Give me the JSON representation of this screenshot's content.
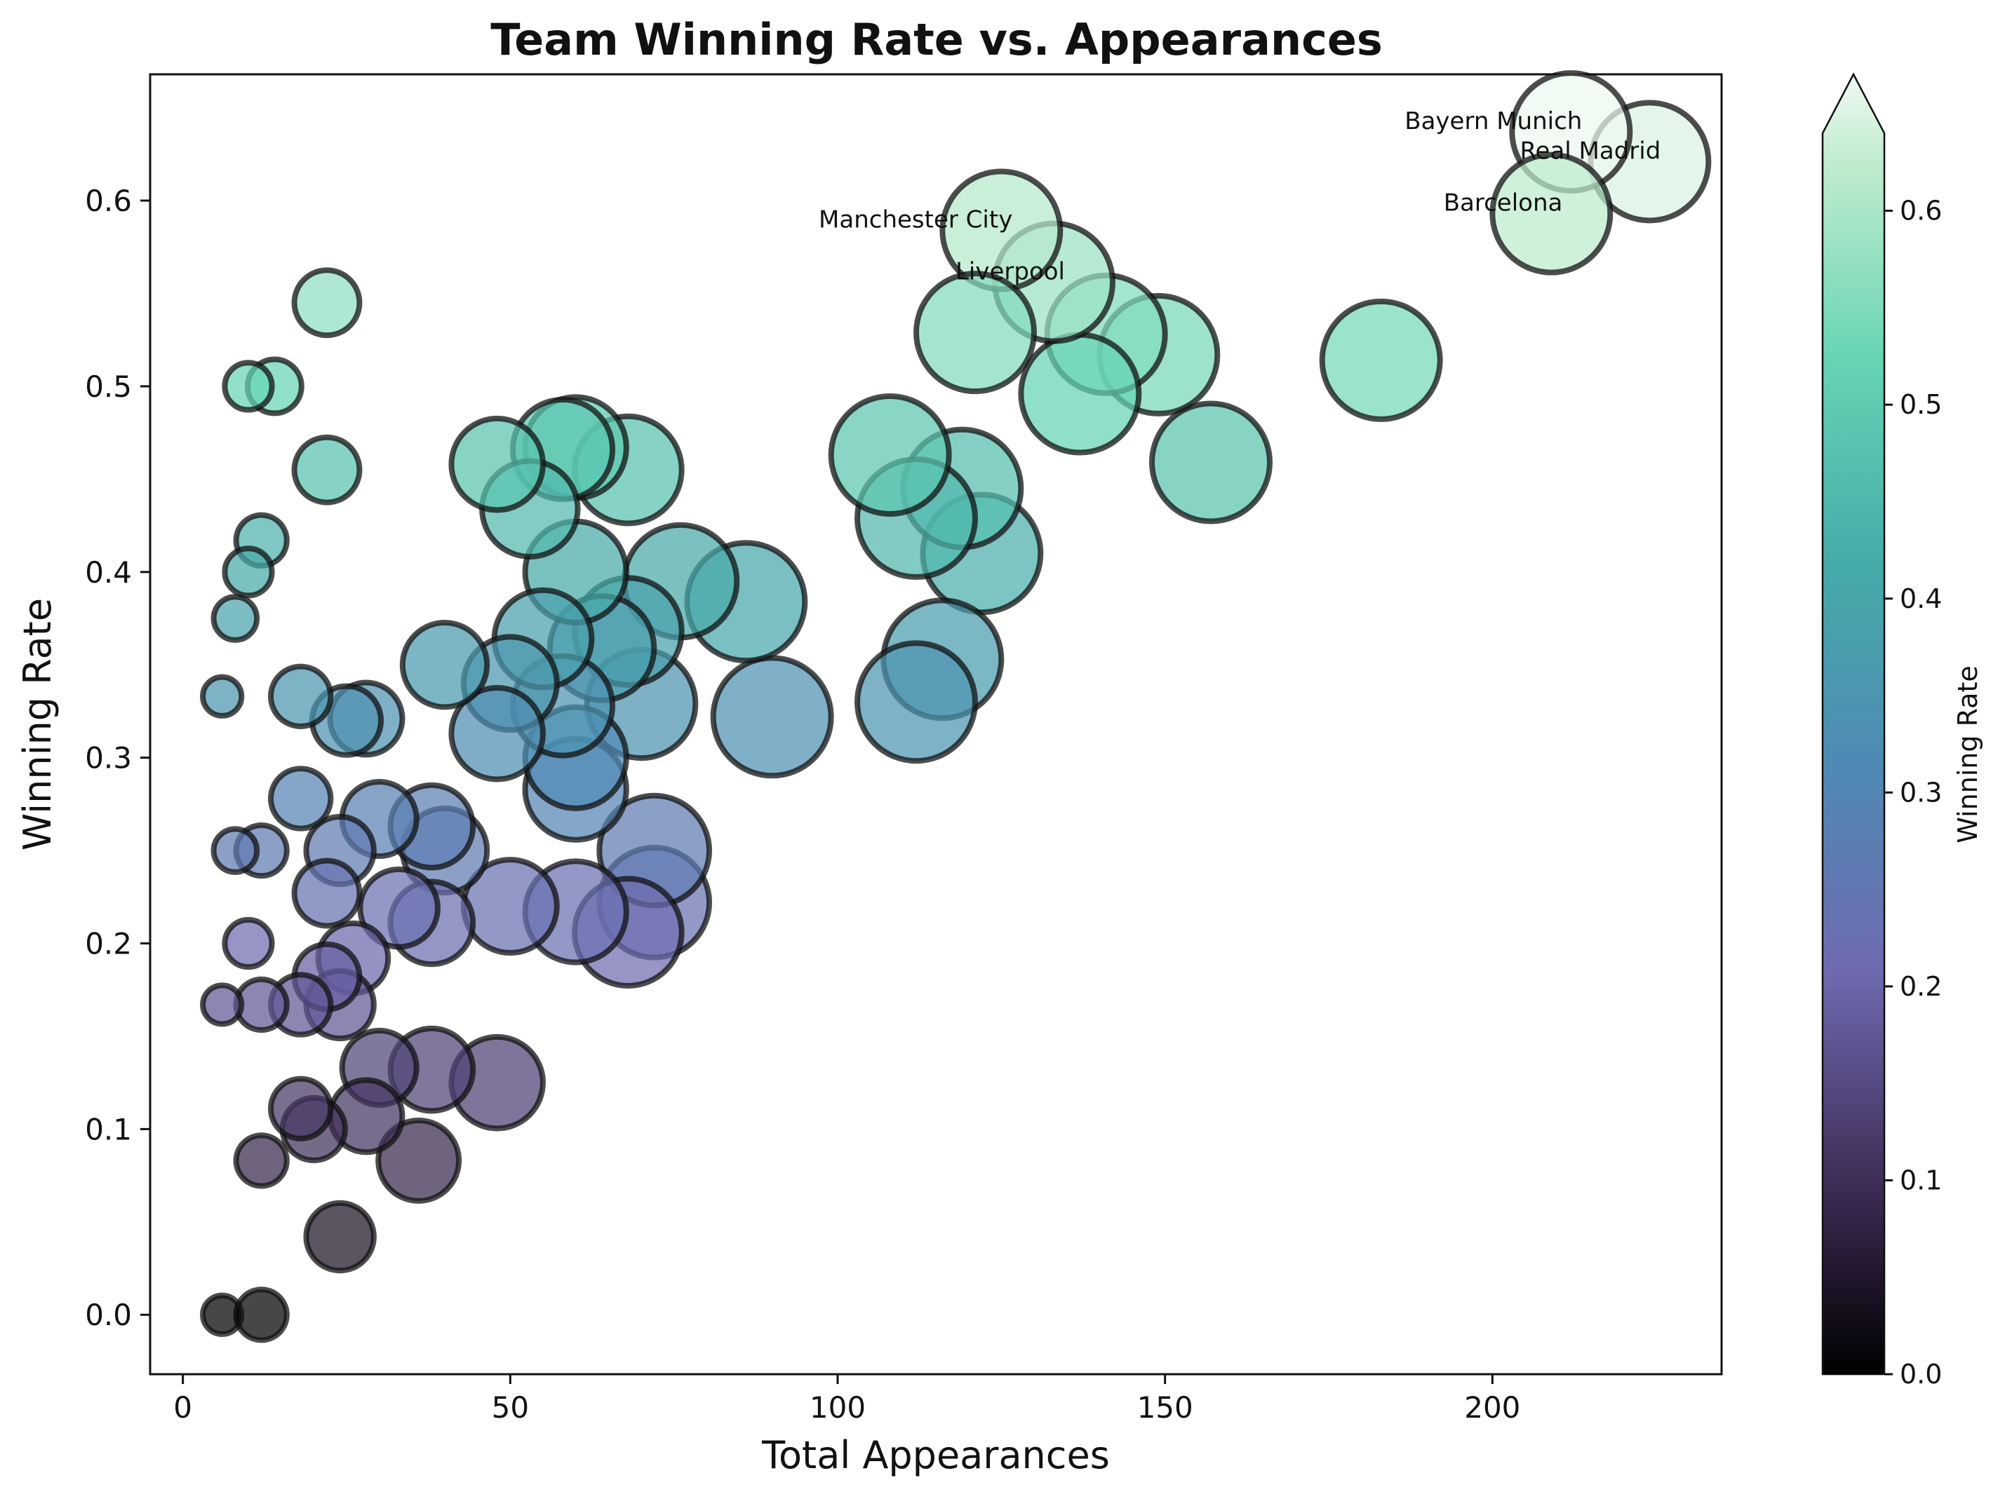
{
  "chart_data": {
    "type": "scatter",
    "title": "Team Winning Rate vs. Appearances",
    "xlabel": "Total Appearances",
    "ylabel": "Winning Rate",
    "xlim": [
      -5,
      235
    ],
    "ylim": [
      -0.032,
      0.668
    ],
    "xticks": [
      "0",
      "50",
      "100",
      "150",
      "200"
    ],
    "xtick_values": [
      0,
      50,
      100,
      150,
      200
    ],
    "yticks": [
      "0.0",
      "0.1",
      "0.2",
      "0.3",
      "0.4",
      "0.5",
      "0.6"
    ],
    "ytick_values": [
      0.0,
      0.1,
      0.2,
      0.3,
      0.4,
      0.5,
      0.6
    ],
    "grid": false,
    "marker_size_encodes": "Total Appearances",
    "marker_color_encodes": "Winning Rate",
    "colorbar": {
      "label": "Winning Rate",
      "range": [
        0.0,
        0.64
      ],
      "ticks": [
        "0.0",
        "0.1",
        "0.2",
        "0.3",
        "0.4",
        "0.5",
        "0.6"
      ],
      "tick_values": [
        0.0,
        0.1,
        0.2,
        0.3,
        0.4,
        0.5,
        0.6
      ],
      "extend": "max",
      "colormap_stops": [
        "#000000",
        "#3c2a52",
        "#6f6ab0",
        "#4f8ab4",
        "#46aaa8",
        "#66d4b4",
        "#bfeccd",
        "#eef9f1"
      ]
    },
    "annotations": [
      {
        "text": "Bayern Munich",
        "x": 212,
        "y": 0.637
      },
      {
        "text": "Real Madrid",
        "x": 224,
        "y": 0.621
      },
      {
        "text": "Barcelona",
        "x": 209,
        "y": 0.593
      },
      {
        "text": "Manchester City",
        "x": 125,
        "y": 0.584
      },
      {
        "text": "Liverpool",
        "x": 133,
        "y": 0.556
      }
    ],
    "points": [
      {
        "x": 6,
        "y": 0.0
      },
      {
        "x": 12,
        "y": 0.0
      },
      {
        "x": 24,
        "y": 0.042
      },
      {
        "x": 12,
        "y": 0.083
      },
      {
        "x": 36,
        "y": 0.083
      },
      {
        "x": 20,
        "y": 0.1
      },
      {
        "x": 28,
        "y": 0.107
      },
      {
        "x": 18,
        "y": 0.111
      },
      {
        "x": 48,
        "y": 0.125
      },
      {
        "x": 30,
        "y": 0.133
      },
      {
        "x": 38,
        "y": 0.132
      },
      {
        "x": 6,
        "y": 0.167
      },
      {
        "x": 12,
        "y": 0.167
      },
      {
        "x": 18,
        "y": 0.167
      },
      {
        "x": 24,
        "y": 0.167
      },
      {
        "x": 22,
        "y": 0.182
      },
      {
        "x": 26,
        "y": 0.192
      },
      {
        "x": 10,
        "y": 0.2
      },
      {
        "x": 38,
        "y": 0.211
      },
      {
        "x": 33,
        "y": 0.219
      },
      {
        "x": 50,
        "y": 0.22
      },
      {
        "x": 60,
        "y": 0.217
      },
      {
        "x": 68,
        "y": 0.206
      },
      {
        "x": 72,
        "y": 0.222
      },
      {
        "x": 22,
        "y": 0.227
      },
      {
        "x": 8,
        "y": 0.25
      },
      {
        "x": 12,
        "y": 0.25
      },
      {
        "x": 24,
        "y": 0.25
      },
      {
        "x": 40,
        "y": 0.25
      },
      {
        "x": 72,
        "y": 0.25
      },
      {
        "x": 30,
        "y": 0.267
      },
      {
        "x": 38,
        "y": 0.263
      },
      {
        "x": 18,
        "y": 0.278
      },
      {
        "x": 60,
        "y": 0.283
      },
      {
        "x": 60,
        "y": 0.3
      },
      {
        "x": 48,
        "y": 0.313
      },
      {
        "x": 25,
        "y": 0.32
      },
      {
        "x": 28,
        "y": 0.321
      },
      {
        "x": 90,
        "y": 0.322
      },
      {
        "x": 112,
        "y": 0.33
      },
      {
        "x": 58,
        "y": 0.328
      },
      {
        "x": 70,
        "y": 0.329
      },
      {
        "x": 6,
        "y": 0.333
      },
      {
        "x": 18,
        "y": 0.333
      },
      {
        "x": 50,
        "y": 0.34
      },
      {
        "x": 40,
        "y": 0.35
      },
      {
        "x": 116,
        "y": 0.353
      },
      {
        "x": 64,
        "y": 0.359
      },
      {
        "x": 55,
        "y": 0.364
      },
      {
        "x": 68,
        "y": 0.368
      },
      {
        "x": 8,
        "y": 0.375
      },
      {
        "x": 86,
        "y": 0.384
      },
      {
        "x": 76,
        "y": 0.395
      },
      {
        "x": 10,
        "y": 0.4
      },
      {
        "x": 60,
        "y": 0.4
      },
      {
        "x": 122,
        "y": 0.41
      },
      {
        "x": 12,
        "y": 0.417
      },
      {
        "x": 112,
        "y": 0.429
      },
      {
        "x": 53,
        "y": 0.434
      },
      {
        "x": 119,
        "y": 0.445
      },
      {
        "x": 22,
        "y": 0.455
      },
      {
        "x": 68,
        "y": 0.455
      },
      {
        "x": 48,
        "y": 0.458
      },
      {
        "x": 157,
        "y": 0.459
      },
      {
        "x": 108,
        "y": 0.463
      },
      {
        "x": 58,
        "y": 0.466
      },
      {
        "x": 60,
        "y": 0.467
      },
      {
        "x": 137,
        "y": 0.496
      },
      {
        "x": 10,
        "y": 0.5
      },
      {
        "x": 14,
        "y": 0.5
      },
      {
        "x": 183,
        "y": 0.514
      },
      {
        "x": 149,
        "y": 0.517
      },
      {
        "x": 141,
        "y": 0.528
      },
      {
        "x": 121,
        "y": 0.529
      },
      {
        "x": 22,
        "y": 0.545
      },
      {
        "x": 133,
        "y": 0.556
      },
      {
        "x": 125,
        "y": 0.584
      },
      {
        "x": 209,
        "y": 0.593
      },
      {
        "x": 224,
        "y": 0.621
      },
      {
        "x": 212,
        "y": 0.637
      }
    ]
  }
}
